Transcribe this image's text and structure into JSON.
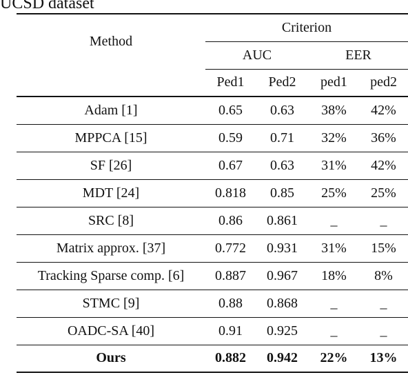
{
  "caption": "UCSD dataset",
  "header": {
    "method": "Method",
    "criterion": "Criterion",
    "auc": "AUC",
    "eer": "EER",
    "sub": [
      "Ped1",
      "Ped2",
      "ped1",
      "ped2"
    ]
  },
  "rows": [
    {
      "method": "Adam [1]",
      "vals": [
        "0.65",
        "0.63",
        "38%",
        "42%"
      ]
    },
    {
      "method": "MPPCA [15]",
      "vals": [
        "0.59",
        "0.71",
        "32%",
        "36%"
      ]
    },
    {
      "method": "SF [26]",
      "vals": [
        "0.67",
        "0.63",
        "31%",
        "42%"
      ]
    },
    {
      "method": "MDT [24]",
      "vals": [
        "0.818",
        "0.85",
        "25%",
        "25%"
      ]
    },
    {
      "method": "SRC [8]",
      "vals": [
        "0.86",
        "0.861",
        "_",
        "_"
      ]
    },
    {
      "method": "Matrix approx. [37]",
      "vals": [
        "0.772",
        "0.931",
        "31%",
        "15%"
      ]
    },
    {
      "method": "Tracking Sparse comp. [6]",
      "vals": [
        "0.887",
        "0.967",
        "18%",
        "8%"
      ]
    },
    {
      "method": "STMC [9]",
      "vals": [
        "0.88",
        "0.868",
        "_",
        "_"
      ]
    },
    {
      "method": "OADC-SA [40]",
      "vals": [
        "0.91",
        "0.925",
        "_",
        "_"
      ]
    },
    {
      "method": "Ours",
      "vals": [
        "0.882",
        "0.942",
        "22%",
        "13%"
      ]
    }
  ]
}
